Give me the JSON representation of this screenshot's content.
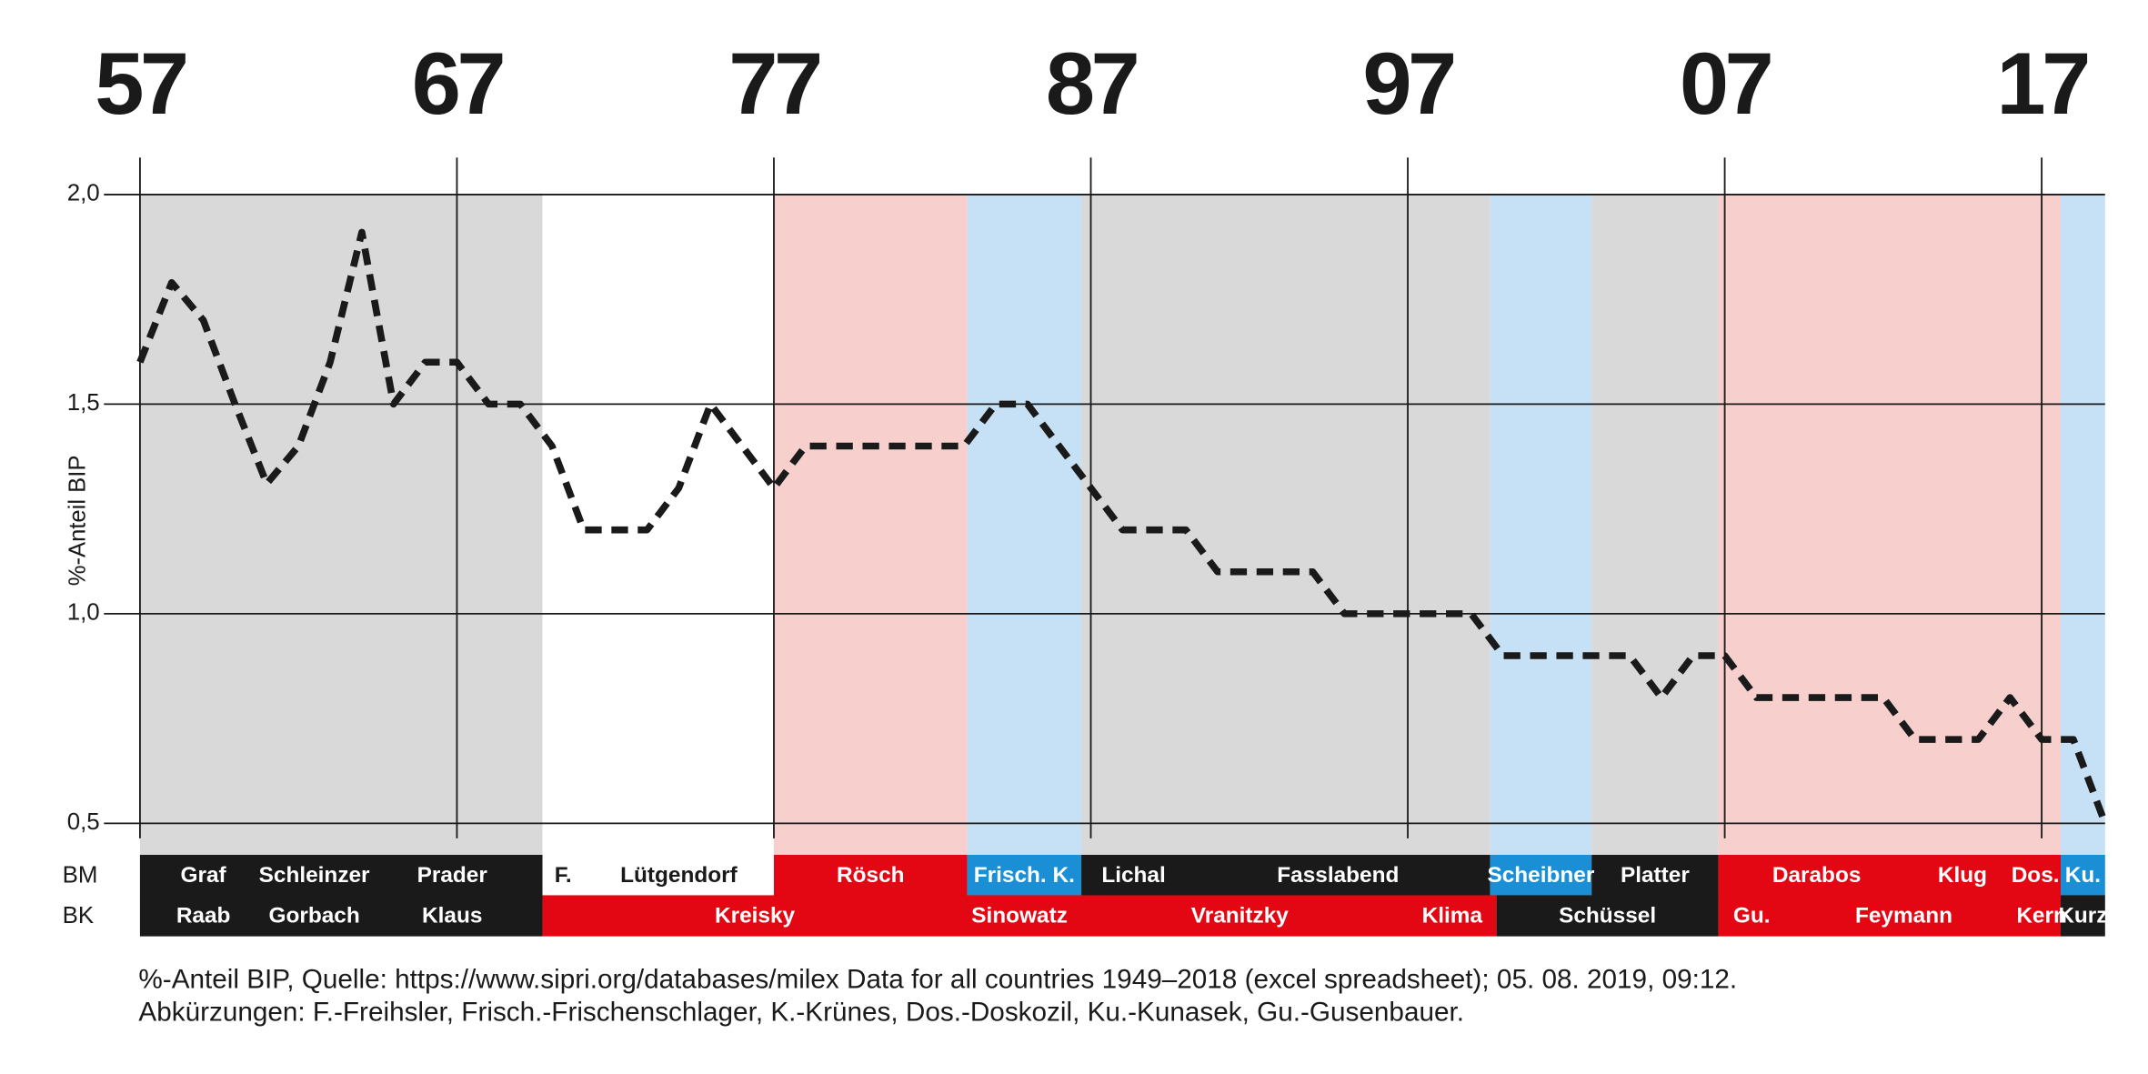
{
  "chart_data": {
    "type": "line",
    "ylabel": "%-Anteil BIP",
    "xlim": [
      1957,
      2019
    ],
    "ylim": [
      0.5,
      2.0
    ],
    "xticks": [
      {
        "value": 1957,
        "label": "57"
      },
      {
        "value": 1967,
        "label": "67"
      },
      {
        "value": 1977,
        "label": "77"
      },
      {
        "value": 1987,
        "label": "87"
      },
      {
        "value": 1997,
        "label": "97"
      },
      {
        "value": 2007,
        "label": "07"
      },
      {
        "value": 2017,
        "label": "17"
      }
    ],
    "yticks": [
      {
        "value": 0.5,
        "label": "0,5"
      },
      {
        "value": 1.0,
        "label": "1,0"
      },
      {
        "value": 1.5,
        "label": "1,5"
      },
      {
        "value": 2.0,
        "label": "2,0"
      }
    ],
    "grid": true,
    "color": "#1a1a1a",
    "line_style": "dashed",
    "x": [
      1957,
      1958,
      1959,
      1960,
      1961,
      1962,
      1963,
      1964,
      1965,
      1966,
      1967,
      1968,
      1969,
      1970,
      1971,
      1972,
      1973,
      1974,
      1975,
      1976,
      1977,
      1978,
      1979,
      1980,
      1981,
      1982,
      1983,
      1984,
      1985,
      1986,
      1987,
      1988,
      1989,
      1990,
      1991,
      1992,
      1993,
      1994,
      1995,
      1996,
      1997,
      1998,
      1999,
      2000,
      2001,
      2002,
      2003,
      2004,
      2005,
      2006,
      2007,
      2008,
      2009,
      2010,
      2011,
      2012,
      2013,
      2014,
      2015,
      2016,
      2017,
      2018,
      2019
    ],
    "values": [
      1.6,
      1.79,
      1.7,
      1.5,
      1.31,
      1.4,
      1.6,
      1.91,
      1.5,
      1.6,
      1.6,
      1.5,
      1.5,
      1.4,
      1.2,
      1.2,
      1.2,
      1.3,
      1.5,
      1.4,
      1.3,
      1.4,
      1.4,
      1.4,
      1.4,
      1.4,
      1.4,
      1.5,
      1.5,
      1.4,
      1.3,
      1.2,
      1.2,
      1.2,
      1.1,
      1.1,
      1.1,
      1.1,
      1.0,
      1.0,
      1.0,
      1.0,
      1.0,
      0.9,
      0.9,
      0.9,
      0.9,
      0.9,
      0.8,
      0.9,
      0.9,
      0.8,
      0.8,
      0.8,
      0.8,
      0.8,
      0.7,
      0.7,
      0.7,
      0.8,
      0.7,
      0.7,
      0.5
    ],
    "rows": [
      {
        "label": "BM",
        "blocks": [
          {
            "from": 1957,
            "to": 1969.7,
            "color": "#1a1a1a",
            "text_color": "#ffffff",
            "background": "#d9d9d9",
            "people": [
              {
                "name": "Graf",
                "from": 1957,
                "to": 1961
              },
              {
                "name": "Schleinzer",
                "from": 1961,
                "to": 1964
              },
              {
                "name": "Prader",
                "from": 1964,
                "to": 1969.7
              }
            ]
          },
          {
            "from": 1969.7,
            "to": 1977,
            "color": "#ffffff",
            "text_color": "#1a1a1a",
            "background": "#ffffff",
            "people": [
              {
                "name": "F.",
                "from": 1969.7,
                "to": 1971
              },
              {
                "name": "Lütgendorf",
                "from": 1971,
                "to": 1977
              }
            ]
          },
          {
            "from": 1977,
            "to": 1983.1,
            "color": "#e30613",
            "text_color": "#ffffff",
            "background": "#f7cfcd",
            "people": [
              {
                "name": "Rösch",
                "from": 1977,
                "to": 1983.1
              }
            ]
          },
          {
            "from": 1983.1,
            "to": 1986.7,
            "color": "#1a8fd6",
            "text_color": "#ffffff",
            "background": "#c6e0f5",
            "people": [
              {
                "name": "Frisch. K.",
                "from": 1983.1,
                "to": 1986.7
              }
            ]
          },
          {
            "from": 1986.7,
            "to": 1999.6,
            "color": "#1a1a1a",
            "text_color": "#ffffff",
            "background": "#d9d9d9",
            "people": [
              {
                "name": "Lichal",
                "from": 1986.7,
                "to": 1990
              },
              {
                "name": "Fasslabend",
                "from": 1990,
                "to": 1999.6
              }
            ]
          },
          {
            "from": 1999.6,
            "to": 2002.8,
            "color": "#1a8fd6",
            "text_color": "#ffffff",
            "background": "#c6e0f5",
            "people": [
              {
                "name": "Scheibner",
                "from": 1999.6,
                "to": 2002.8
              }
            ]
          },
          {
            "from": 2002.8,
            "to": 2006.8,
            "color": "#1a1a1a",
            "text_color": "#ffffff",
            "background": "#d9d9d9",
            "people": [
              {
                "name": "Platter",
                "from": 2002.8,
                "to": 2006.8
              }
            ]
          },
          {
            "from": 2006.8,
            "to": 2017.6,
            "color": "#e30613",
            "text_color": "#ffffff",
            "background": "#f7cfcd",
            "people": [
              {
                "name": "Darabos",
                "from": 2006.8,
                "to": 2013
              },
              {
                "name": "Klug",
                "from": 2013,
                "to": 2016
              },
              {
                "name": "Dos.",
                "from": 2016,
                "to": 2017.6
              }
            ]
          },
          {
            "from": 2017.6,
            "to": 2019,
            "color": "#1a8fd6",
            "text_color": "#ffffff",
            "background": "#c6e0f5",
            "people": [
              {
                "name": "Ku.",
                "from": 2017.6,
                "to": 2019
              }
            ]
          }
        ]
      },
      {
        "label": "BK",
        "blocks": [
          {
            "from": 1957,
            "to": 1969.7,
            "color": "#1a1a1a",
            "text_color": "#ffffff",
            "people": [
              {
                "name": "Raab",
                "from": 1957,
                "to": 1961
              },
              {
                "name": "Gorbach",
                "from": 1961,
                "to": 1964
              },
              {
                "name": "Klaus",
                "from": 1964,
                "to": 1969.7
              }
            ]
          },
          {
            "from": 1969.7,
            "to": 1999.8,
            "color": "#e30613",
            "text_color": "#ffffff",
            "people": [
              {
                "name": "Kreisky",
                "from": 1969.7,
                "to": 1983.1
              },
              {
                "name": "Sinowatz",
                "from": 1983.1,
                "to": 1986.4
              },
              {
                "name": "Vranitzky",
                "from": 1986.4,
                "to": 1997
              },
              {
                "name": "Klima",
                "from": 1997,
                "to": 1999.8
              }
            ]
          },
          {
            "from": 1999.8,
            "to": 2006.8,
            "color": "#1a1a1a",
            "text_color": "#ffffff",
            "people": [
              {
                "name": "Schüssel",
                "from": 1999.8,
                "to": 2006.8
              }
            ]
          },
          {
            "from": 2006.8,
            "to": 2017.6,
            "color": "#e30613",
            "text_color": "#ffffff",
            "people": [
              {
                "name": "Gu.",
                "from": 2006.8,
                "to": 2008.9
              },
              {
                "name": "Feymann",
                "from": 2008.9,
                "to": 2016.4
              },
              {
                "name": "Kern",
                "from": 2016.4,
                "to": 2017.6
              }
            ]
          },
          {
            "from": 2017.6,
            "to": 2019,
            "color": "#1a1a1a",
            "text_color": "#ffffff",
            "people": [
              {
                "name": "Kurz",
                "from": 2017.6,
                "to": 2019
              }
            ]
          }
        ]
      }
    ],
    "notes": [
      "%-Anteil BIP, Quelle: https://www.sipri.org/databases/milex Data for all countries 1949–2018 (excel spreadsheet); 05. 08. 2019, 09:12.",
      "Abkürzungen: F.-Freihsler, Frisch.-Frischenschlager, K.-Krünes, Dos.-Doskozil, Ku.-Kunasek, Gu.-Gusenbauer."
    ]
  }
}
